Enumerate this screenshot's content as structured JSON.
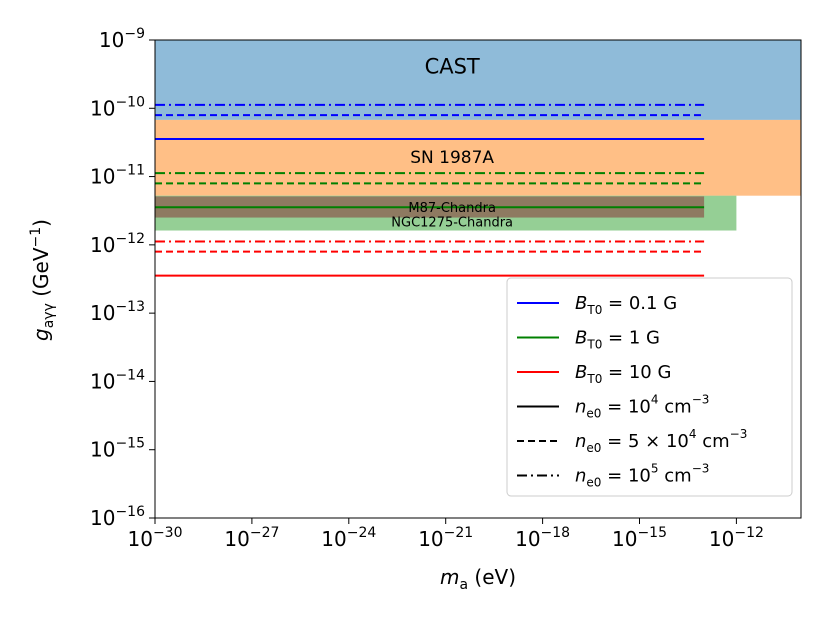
{
  "chart_data": {
    "type": "line",
    "xlabel": {
      "main": "m",
      "sub": "a",
      "unit": " (eV)"
    },
    "ylabel": {
      "main": "g",
      "sub": "aγγ",
      "unit_prefix": " (GeV",
      "unit_exp": "−1",
      "unit_suffix": ")"
    },
    "xlim_log10": [
      -30,
      -10
    ],
    "ylim_log10": [
      -16,
      -9
    ],
    "xticks": [
      {
        "base": "10",
        "exp": "−30",
        "log10": -30
      },
      {
        "base": "10",
        "exp": "−27",
        "log10": -27
      },
      {
        "base": "10",
        "exp": "−24",
        "log10": -24
      },
      {
        "base": "10",
        "exp": "−21",
        "log10": -21
      },
      {
        "base": "10",
        "exp": "−18",
        "log10": -18
      },
      {
        "base": "10",
        "exp": "−15",
        "log10": -15
      },
      {
        "base": "10",
        "exp": "−12",
        "log10": -12
      }
    ],
    "yticks": [
      {
        "base": "10",
        "exp": "−9",
        "log10": -9
      },
      {
        "base": "10",
        "exp": "−10",
        "log10": -10
      },
      {
        "base": "10",
        "exp": "−11",
        "log10": -11
      },
      {
        "base": "10",
        "exp": "−12",
        "log10": -12
      },
      {
        "base": "10",
        "exp": "−13",
        "log10": -13
      },
      {
        "base": "10",
        "exp": "−14",
        "log10": -14
      },
      {
        "base": "10",
        "exp": "−15",
        "log10": -15
      },
      {
        "base": "10",
        "exp": "−16",
        "log10": -16
      }
    ],
    "regions": [
      {
        "name": "CAST",
        "x_log10": [
          -30,
          -10
        ],
        "y_log10": [
          -10.17,
          -9
        ],
        "color": "#1f77b4",
        "opacity": 0.5,
        "label_x_log10": -20.8,
        "label_y_log10": -9.4,
        "style": "big"
      },
      {
        "name": "SN 1987A",
        "x_log10": [
          -30,
          -10
        ],
        "y_log10": [
          -11.28,
          -10.17
        ],
        "color": "#ff7f0e",
        "opacity": 0.5,
        "label_x_log10": -20.8,
        "label_y_log10": -10.73,
        "style": "normal"
      },
      {
        "name": "NGC1275-Chandra",
        "x_log10": [
          -30,
          -12
        ],
        "y_log10": [
          -11.79,
          -11.28
        ],
        "color": "#2ca02c",
        "opacity": 0.5,
        "label_x_log10": -20.8,
        "label_y_log10": -11.68,
        "style": "small"
      },
      {
        "name": "M87-Chandra",
        "x_log10": [
          -30,
          -13
        ],
        "y_log10": [
          -11.6,
          -11.29
        ],
        "color": "#8c564b",
        "opacity": 0.7,
        "label_x_log10": -20.8,
        "label_y_log10": -11.47,
        "style": "small"
      }
    ],
    "series": [
      {
        "name": "B_T0=0.1 G, n_e0=1e4",
        "color": "#0000ff",
        "dash": "solid",
        "x_log10": [
          -30,
          -13
        ],
        "y_log10": -10.45
      },
      {
        "name": "B_T0=0.1 G, n_e0=5e4",
        "color": "#0000ff",
        "dash": "dashed",
        "x_log10": [
          -30,
          -13
        ],
        "y_log10": -10.1
      },
      {
        "name": "B_T0=0.1 G, n_e0=1e5",
        "color": "#0000ff",
        "dash": "dashdot",
        "x_log10": [
          -30,
          -13
        ],
        "y_log10": -9.95
      },
      {
        "name": "B_T0=1 G, n_e0=1e4",
        "color": "#008000",
        "dash": "solid",
        "x_log10": [
          -30,
          -13
        ],
        "y_log10": -11.45
      },
      {
        "name": "B_T0=1 G, n_e0=5e4",
        "color": "#008000",
        "dash": "dashed",
        "x_log10": [
          -30,
          -13
        ],
        "y_log10": -11.1
      },
      {
        "name": "B_T0=1 G, n_e0=1e5",
        "color": "#008000",
        "dash": "dashdot",
        "x_log10": [
          -30,
          -13
        ],
        "y_log10": -10.95
      },
      {
        "name": "B_T0=10 G, n_e0=1e4",
        "color": "#ff0000",
        "dash": "solid",
        "x_log10": [
          -30,
          -13
        ],
        "y_log10": -12.45
      },
      {
        "name": "B_T0=10 G, n_e0=5e4",
        "color": "#ff0000",
        "dash": "dashed",
        "x_log10": [
          -30,
          -13
        ],
        "y_log10": -12.1
      },
      {
        "name": "B_T0=10 G, n_e0=1e5",
        "color": "#ff0000",
        "dash": "dashdot",
        "x_log10": [
          -30,
          -13
        ],
        "y_log10": -11.95
      }
    ],
    "legend": {
      "position": "lower-right",
      "entries": [
        {
          "color": "#0000ff",
          "dash": "solid",
          "var": "B",
          "sub": "T0",
          "rest": " = 0.1 G",
          "sup": "",
          "tail": ""
        },
        {
          "color": "#008000",
          "dash": "solid",
          "var": "B",
          "sub": "T0",
          "rest": " = 1 G",
          "sup": "",
          "tail": ""
        },
        {
          "color": "#ff0000",
          "dash": "solid",
          "var": "B",
          "sub": "T0",
          "rest": " = 10 G",
          "sup": "",
          "tail": ""
        },
        {
          "color": "#000000",
          "dash": "solid",
          "var": "n",
          "sub": "e0",
          "rest": " = 10",
          "sup": "4",
          "tail": " cm",
          "sup2": "−3"
        },
        {
          "color": "#000000",
          "dash": "dashed",
          "var": "n",
          "sub": "e0",
          "rest": " = 5 × 10",
          "sup": "4",
          "tail": " cm",
          "sup2": "−3"
        },
        {
          "color": "#000000",
          "dash": "dashdot",
          "var": "n",
          "sub": "e0",
          "rest": " = 10",
          "sup": "5",
          "tail": " cm",
          "sup2": "−3"
        }
      ]
    }
  }
}
